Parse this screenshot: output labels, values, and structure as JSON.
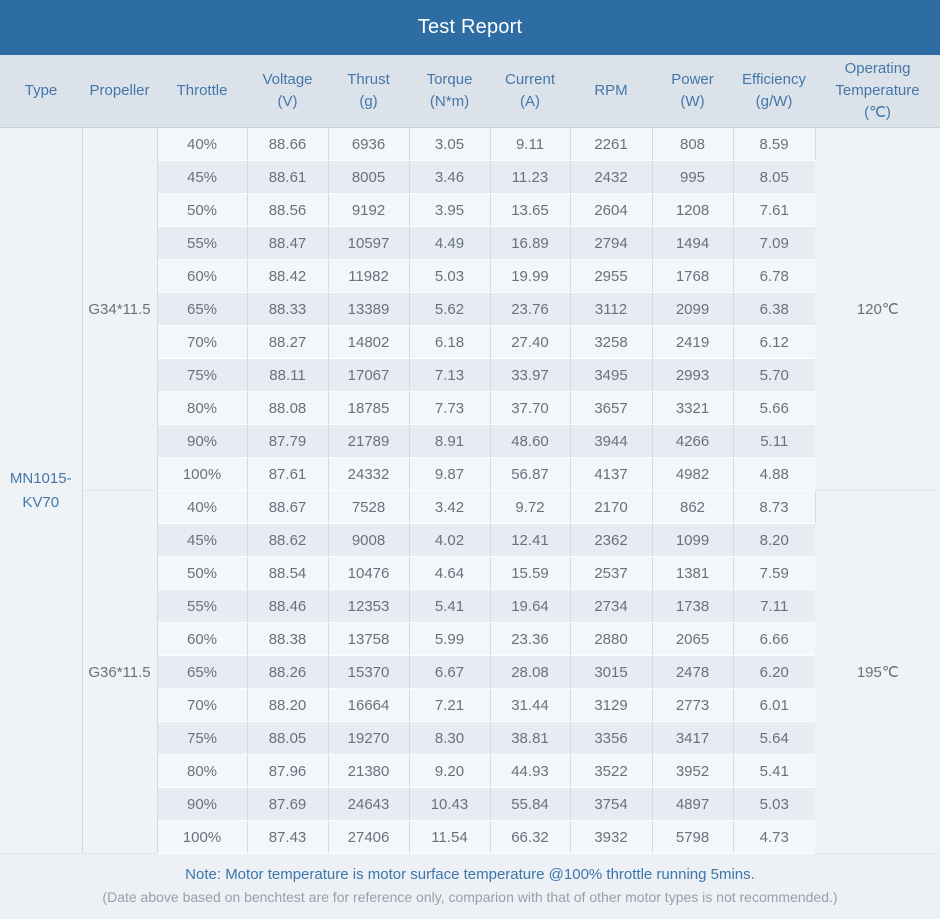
{
  "title": "Test Report",
  "colors": {
    "header_bar": "#2e6da4",
    "header_text": "#ffffff",
    "column_header_bg": "#dce2e9",
    "column_header_text": "#4377aa",
    "row_light": "#f4f7fa",
    "row_dark": "#e7ecf3",
    "merged_cell_bg": "#f0f3f6",
    "data_text": "#68717d",
    "note_text": "#3b76ab",
    "note_sub_text": "#97a0ab"
  },
  "columns": [
    "Type",
    "Propeller",
    "Throttle",
    "Voltage\n(V)",
    "Thrust\n(g)",
    "Torque\n(N*m)",
    "Current\n(A)",
    "RPM",
    "Power\n(W)",
    "Efficiency\n(g/W)",
    "Operating\nTemperature\n(℃)"
  ],
  "type": "MN1015-KV70",
  "groups": [
    {
      "propeller": "G34*11.5",
      "temperature": "120℃",
      "rows": [
        [
          "40%",
          "88.66",
          "6936",
          "3.05",
          "9.11",
          "2261",
          "808",
          "8.59"
        ],
        [
          "45%",
          "88.61",
          "8005",
          "3.46",
          "11.23",
          "2432",
          "995",
          "8.05"
        ],
        [
          "50%",
          "88.56",
          "9192",
          "3.95",
          "13.65",
          "2604",
          "1208",
          "7.61"
        ],
        [
          "55%",
          "88.47",
          "10597",
          "4.49",
          "16.89",
          "2794",
          "1494",
          "7.09"
        ],
        [
          "60%",
          "88.42",
          "11982",
          "5.03",
          "19.99",
          "2955",
          "1768",
          "6.78"
        ],
        [
          "65%",
          "88.33",
          "13389",
          "5.62",
          "23.76",
          "3112",
          "2099",
          "6.38"
        ],
        [
          "70%",
          "88.27",
          "14802",
          "6.18",
          "27.40",
          "3258",
          "2419",
          "6.12"
        ],
        [
          "75%",
          "88.11",
          "17067",
          "7.13",
          "33.97",
          "3495",
          "2993",
          "5.70"
        ],
        [
          "80%",
          "88.08",
          "18785",
          "7.73",
          "37.70",
          "3657",
          "3321",
          "5.66"
        ],
        [
          "90%",
          "87.79",
          "21789",
          "8.91",
          "48.60",
          "3944",
          "4266",
          "5.11"
        ],
        [
          "100%",
          "87.61",
          "24332",
          "9.87",
          "56.87",
          "4137",
          "4982",
          "4.88"
        ]
      ]
    },
    {
      "propeller": "G36*11.5",
      "temperature": "195℃",
      "rows": [
        [
          "40%",
          "88.67",
          "7528",
          "3.42",
          "9.72",
          "2170",
          "862",
          "8.73"
        ],
        [
          "45%",
          "88.62",
          "9008",
          "4.02",
          "12.41",
          "2362",
          "1099",
          "8.20"
        ],
        [
          "50%",
          "88.54",
          "10476",
          "4.64",
          "15.59",
          "2537",
          "1381",
          "7.59"
        ],
        [
          "55%",
          "88.46",
          "12353",
          "5.41",
          "19.64",
          "2734",
          "1738",
          "7.11"
        ],
        [
          "60%",
          "88.38",
          "13758",
          "5.99",
          "23.36",
          "2880",
          "2065",
          "6.66"
        ],
        [
          "65%",
          "88.26",
          "15370",
          "6.67",
          "28.08",
          "3015",
          "2478",
          "6.20"
        ],
        [
          "70%",
          "88.20",
          "16664",
          "7.21",
          "31.44",
          "3129",
          "2773",
          "6.01"
        ],
        [
          "75%",
          "88.05",
          "19270",
          "8.30",
          "38.81",
          "3356",
          "3417",
          "5.64"
        ],
        [
          "80%",
          "87.96",
          "21380",
          "9.20",
          "44.93",
          "3522",
          "3952",
          "5.41"
        ],
        [
          "90%",
          "87.69",
          "24643",
          "10.43",
          "55.84",
          "3754",
          "4897",
          "5.03"
        ],
        [
          "100%",
          "87.43",
          "27406",
          "11.54",
          "66.32",
          "3932",
          "5798",
          "4.73"
        ]
      ]
    }
  ],
  "cell_fields": [
    "throttle",
    "voltage",
    "thrust",
    "torque",
    "current",
    "rpm",
    "power",
    "efficiency"
  ],
  "notes": {
    "line1": "Note: Motor temperature is motor surface temperature @100% throttle running 5mins.",
    "line2": "(Date above based on benchtest are for reference only, comparion with that of other motor types is not recommended.)"
  }
}
